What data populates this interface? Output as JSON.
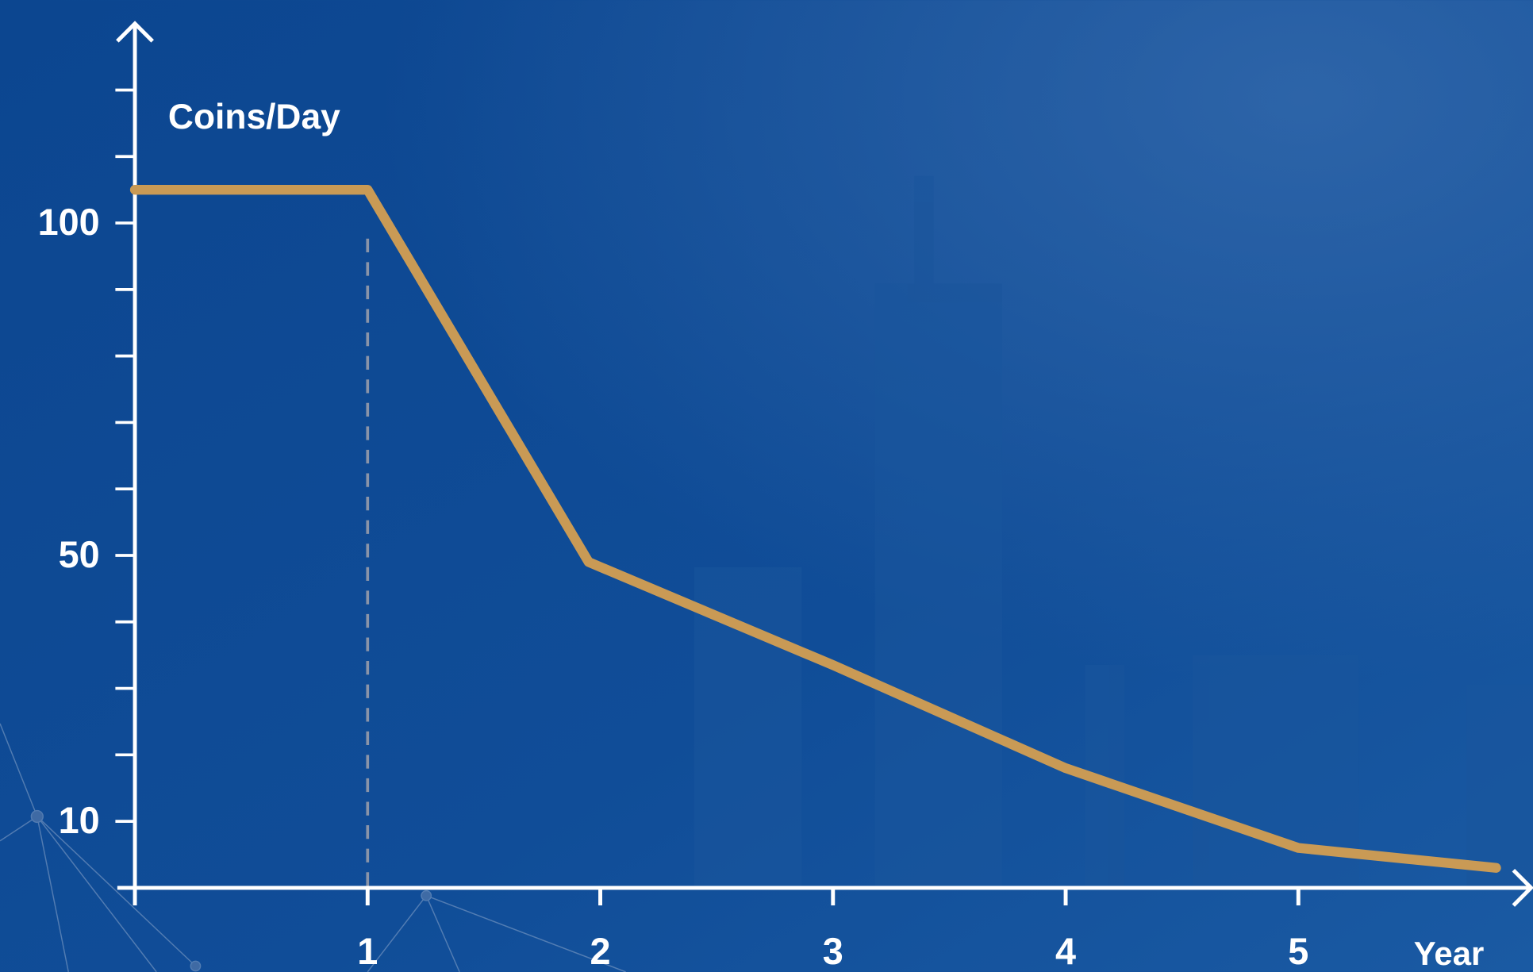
{
  "chart_data": {
    "type": "line",
    "y_label": "Coins/Day",
    "x_label": "Year",
    "x": [
      0,
      1,
      1.95,
      3,
      4,
      5,
      5.85
    ],
    "series": [
      {
        "name": "Coins/Day",
        "color": "#c99a55",
        "values": [
          105,
          105,
          49,
          33.5,
          18,
          6,
          3
        ]
      }
    ],
    "xlim": [
      0,
      6
    ],
    "xticks": [
      1,
      2,
      3,
      4,
      5
    ],
    "ylim": [
      0,
      129
    ],
    "yticks": [
      10,
      50,
      100
    ],
    "yminor_ticks": [
      20,
      30,
      40,
      60,
      70,
      80,
      90,
      110,
      120
    ],
    "reference_x": [
      1
    ]
  }
}
